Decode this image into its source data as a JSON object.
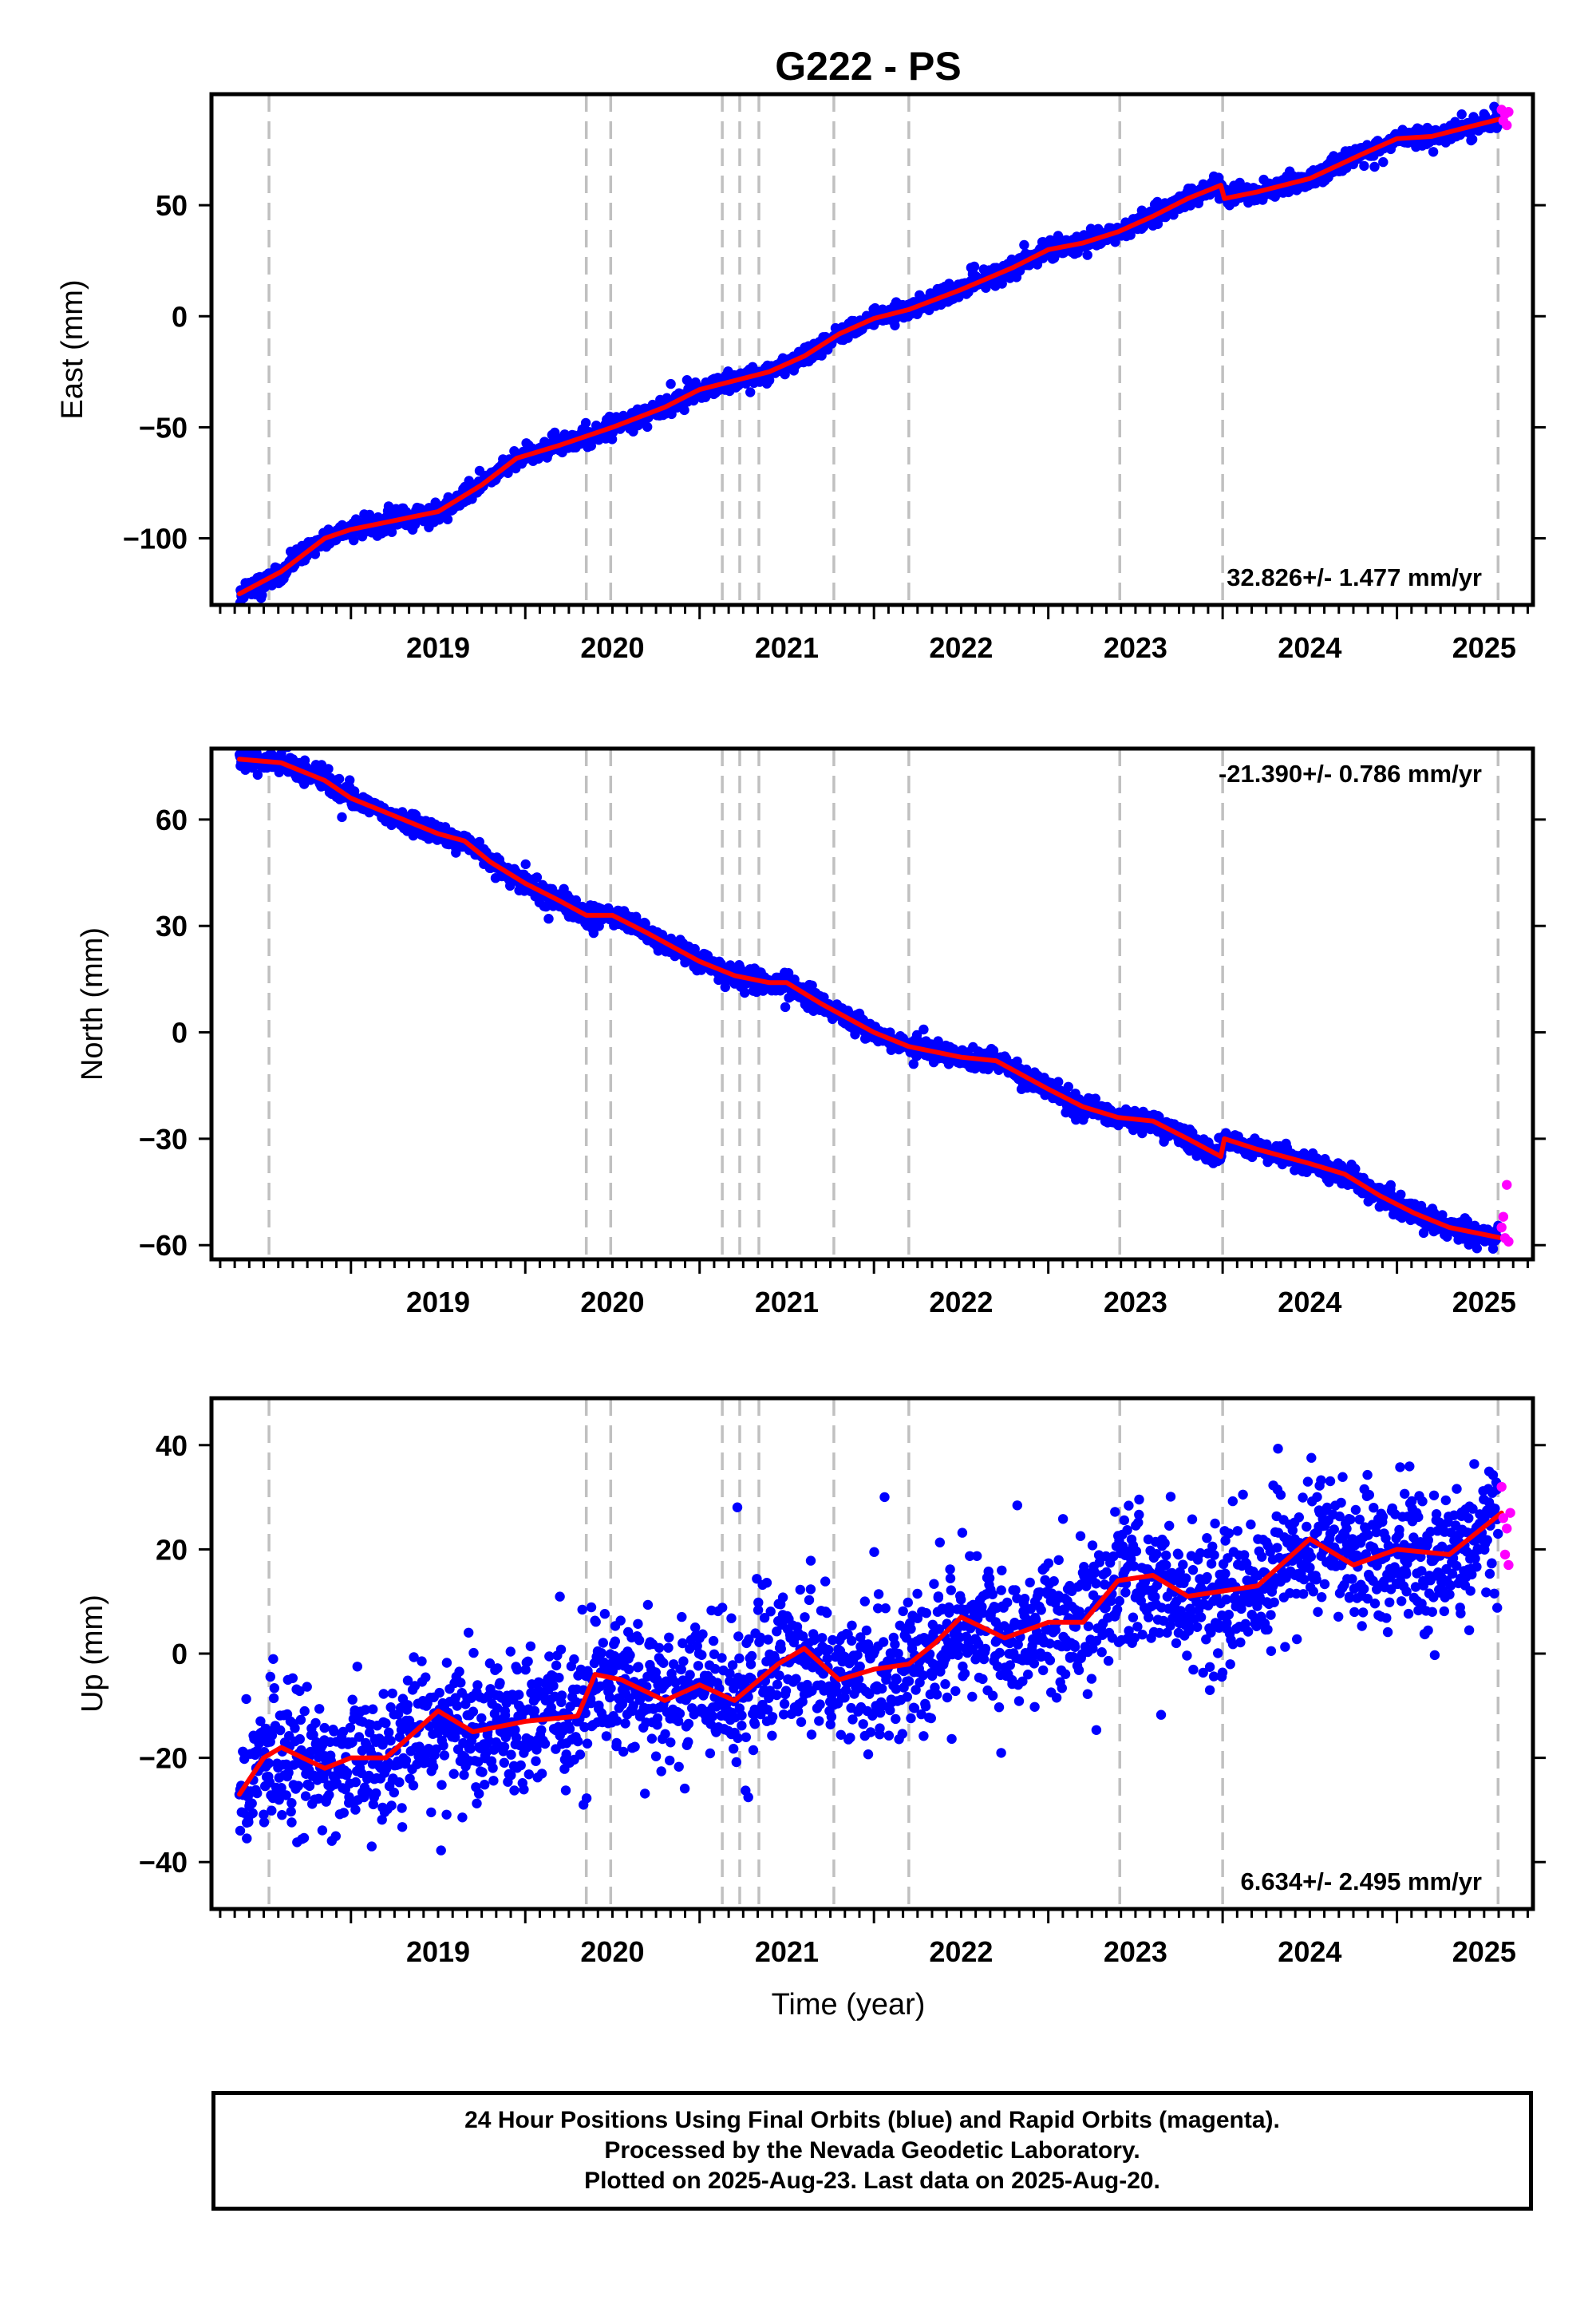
{
  "colors": {
    "final_orbits": "#0000ff",
    "rapid_orbits": "#ff00ff",
    "model_fit": "#ff0000",
    "event_lines": "#c0c0c0",
    "frame": "#000000"
  },
  "chart_data": [
    {
      "type": "scatter",
      "title": "G222 - PS",
      "ylabel": "East (mm)",
      "xlabel": "",
      "rate_text": "32.826+/- 1.477 mm/yr",
      "rate_position": "bottom-right",
      "xlim": [
        2018.2,
        2025.78
      ],
      "ylim": [
        -130,
        100
      ],
      "xticks": [
        2019,
        2020,
        2021,
        2022,
        2023,
        2024,
        2025
      ],
      "xtick_labels": [
        "2019",
        "2020",
        "2021",
        "2022",
        "2023",
        "2024",
        "2025"
      ],
      "yticks": [
        -100,
        -50,
        0,
        50
      ],
      "ytick_labels": [
        "−100",
        "−50",
        "0",
        "50"
      ],
      "event_lines_x": [
        2018.53,
        2020.35,
        2020.49,
        2021.13,
        2021.23,
        2021.34,
        2021.77,
        2022.2,
        2023.41,
        2024.0,
        2025.58
      ],
      "noise_mm": 2.0,
      "fit_curve": {
        "x": [
          2018.36,
          2018.6,
          2018.85,
          2019.0,
          2019.5,
          2019.75,
          2019.95,
          2020.2,
          2020.5,
          2020.8,
          2021.0,
          2021.2,
          2021.4,
          2021.6,
          2021.8,
          2022.0,
          2022.2,
          2022.5,
          2022.8,
          2023.0,
          2023.2,
          2023.4,
          2023.6,
          2023.8,
          2023.99,
          2024.01,
          2024.2,
          2024.5,
          2024.8,
          2025.0,
          2025.2,
          2025.4,
          2025.6
        ],
        "y": [
          -125,
          -115,
          -100,
          -96,
          -88,
          -76,
          -64,
          -58,
          -50,
          -41,
          -33,
          -29,
          -25,
          -18,
          -8,
          -1,
          3,
          12,
          22,
          30,
          33,
          38,
          45,
          53,
          59,
          53,
          56,
          62,
          73,
          80,
          81,
          85,
          89
        ]
      },
      "rapid_points": {
        "x": [
          2025.6,
          2025.61,
          2025.62,
          2025.63,
          2025.64
        ],
        "y": [
          93,
          88,
          91,
          86,
          92
        ]
      }
    },
    {
      "type": "scatter",
      "title": "",
      "ylabel": "North (mm)",
      "xlabel": "",
      "rate_text": "-21.390+/- 0.786 mm/yr",
      "rate_position": "top-right",
      "xlim": [
        2018.2,
        2025.78
      ],
      "ylim": [
        -64,
        80
      ],
      "xticks": [
        2019,
        2020,
        2021,
        2022,
        2023,
        2024,
        2025
      ],
      "xtick_labels": [
        "2019",
        "2020",
        "2021",
        "2022",
        "2023",
        "2024",
        "2025"
      ],
      "yticks": [
        -60,
        -30,
        0,
        30,
        60
      ],
      "ytick_labels": [
        "−60",
        "−30",
        "0",
        "30",
        "60"
      ],
      "event_lines_x": [
        2018.53,
        2020.35,
        2020.49,
        2021.13,
        2021.23,
        2021.34,
        2021.77,
        2022.2,
        2023.41,
        2024.0,
        2025.58
      ],
      "noise_mm": 1.4,
      "fit_curve": {
        "x": [
          2018.36,
          2018.6,
          2018.85,
          2019.0,
          2019.3,
          2019.5,
          2019.65,
          2019.8,
          2020.0,
          2020.2,
          2020.35,
          2020.5,
          2020.7,
          2021.0,
          2021.2,
          2021.4,
          2021.5,
          2021.7,
          2022.0,
          2022.2,
          2022.5,
          2022.7,
          2023.0,
          2023.2,
          2023.4,
          2023.6,
          2023.8,
          2023.99,
          2024.01,
          2024.2,
          2024.5,
          2024.7,
          2024.9,
          2025.1,
          2025.3,
          2025.6
        ],
        "y": [
          77,
          76,
          71,
          66,
          60,
          56,
          54,
          48,
          42,
          37,
          33,
          33,
          28,
          20,
          16,
          14,
          14,
          8,
          0,
          -4,
          -7,
          -8,
          -16,
          -21,
          -24,
          -25,
          -30,
          -35,
          -30,
          -33,
          -37,
          -40,
          -46,
          -51,
          -55,
          -58
        ]
      },
      "rapid_points": {
        "x": [
          2025.6,
          2025.61,
          2025.62,
          2025.63,
          2025.64
        ],
        "y": [
          -55,
          -52,
          -58,
          -43,
          -59
        ]
      }
    },
    {
      "type": "scatter",
      "title": "",
      "ylabel": "Up (mm)",
      "xlabel": "Time (year)",
      "rate_text": "6.634+/- 2.495 mm/yr",
      "rate_position": "bottom-right",
      "xlim": [
        2018.2,
        2025.78
      ],
      "ylim": [
        -49,
        49
      ],
      "xticks": [
        2019,
        2020,
        2021,
        2022,
        2023,
        2024,
        2025
      ],
      "xtick_labels": [
        "2019",
        "2020",
        "2021",
        "2022",
        "2023",
        "2024",
        "2025"
      ],
      "yticks": [
        -40,
        -20,
        0,
        20,
        40
      ],
      "ytick_labels": [
        "−40",
        "−20",
        "0",
        "20",
        "40"
      ],
      "event_lines_x": [
        2018.53,
        2020.35,
        2020.49,
        2021.13,
        2021.23,
        2021.34,
        2021.77,
        2022.2,
        2023.41,
        2024.0,
        2025.58
      ],
      "noise_mm": 6.5,
      "fit_curve": {
        "x": [
          2018.36,
          2018.5,
          2018.6,
          2018.85,
          2019.0,
          2019.2,
          2019.5,
          2019.7,
          2020.0,
          2020.3,
          2020.4,
          2020.55,
          2020.8,
          2021.0,
          2021.2,
          2021.45,
          2021.6,
          2021.8,
          2022.0,
          2022.2,
          2022.35,
          2022.5,
          2022.75,
          2023.0,
          2023.2,
          2023.4,
          2023.6,
          2023.8,
          2024.0,
          2024.2,
          2024.5,
          2024.75,
          2025.0,
          2025.3,
          2025.6
        ],
        "y": [
          -27,
          -20,
          -18,
          -22,
          -20,
          -20,
          -11,
          -15,
          -13,
          -12,
          -4,
          -5,
          -9,
          -6,
          -9,
          -2,
          1,
          -5,
          -3,
          -2,
          2,
          7,
          3,
          6,
          6,
          14,
          15,
          11,
          12,
          13,
          22,
          17,
          20,
          19,
          27
        ]
      },
      "rapid_points": {
        "x": [
          2025.6,
          2025.61,
          2025.62,
          2025.63,
          2025.64,
          2025.65
        ],
        "y": [
          32,
          26,
          19,
          24,
          17,
          27
        ]
      }
    }
  ],
  "footer": {
    "line1": "24 Hour Positions Using Final Orbits (blue) and Rapid Orbits (magenta).",
    "line2": "Processed by the Nevada Geodetic Laboratory.",
    "line3": "Plotted on 2025-Aug-23. Last data on 2025-Aug-20."
  }
}
